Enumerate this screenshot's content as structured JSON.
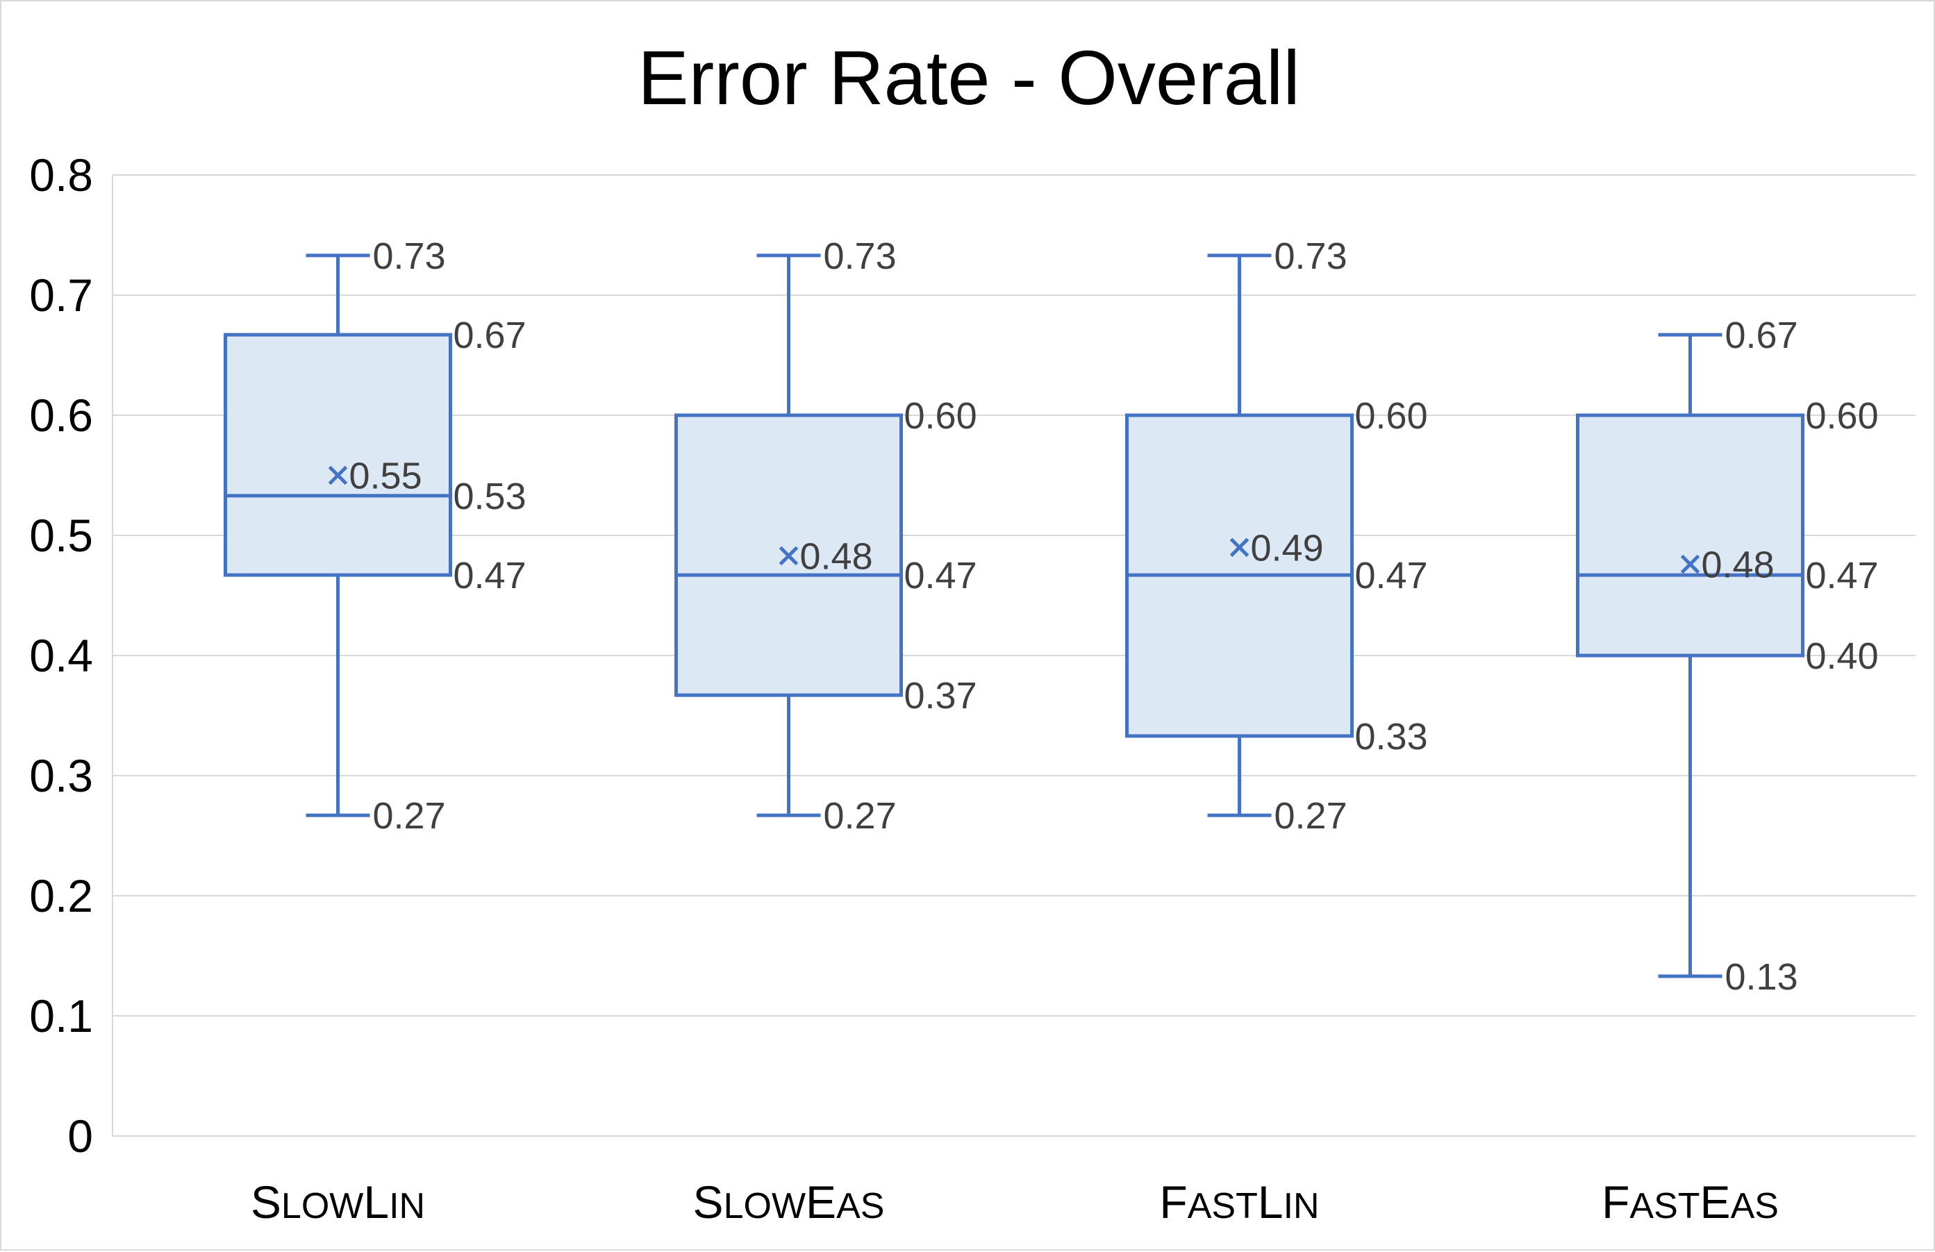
{
  "chart_data": {
    "type": "box",
    "title": "Error Rate - Overall",
    "xlabel": "",
    "ylabel": "",
    "ylim": [
      0,
      0.8
    ],
    "yticks": [
      "0",
      "0.1",
      "0.2",
      "0.3",
      "0.4",
      "0.5",
      "0.6",
      "0.7",
      "0.8"
    ],
    "grid": true,
    "categories": [
      "SlowLin",
      "SlowEas",
      "FastLin",
      "FastEas"
    ],
    "boxes": [
      {
        "category": "SlowLin",
        "max": 0.733,
        "q3": 0.667,
        "median": 0.533,
        "q1": 0.467,
        "min": 0.267,
        "mean": 0.55,
        "labels": {
          "max": "0.73",
          "q3": "0.67",
          "median": "0.53",
          "q1": "0.47",
          "min": "0.27",
          "mean": "0.55"
        }
      },
      {
        "category": "SlowEas",
        "max": 0.733,
        "q3": 0.6,
        "median": 0.467,
        "q1": 0.367,
        "min": 0.267,
        "mean": 0.483,
        "labels": {
          "max": "0.73",
          "q3": "0.60",
          "median": "0.47",
          "q1": "0.37",
          "min": "0.27",
          "mean": "0.48"
        }
      },
      {
        "category": "FastLin",
        "max": 0.733,
        "q3": 0.6,
        "median": 0.467,
        "q1": 0.333,
        "min": 0.267,
        "mean": 0.49,
        "labels": {
          "max": "0.73",
          "q3": "0.60",
          "median": "0.47",
          "q1": "0.33",
          "min": "0.27",
          "mean": "0.49"
        }
      },
      {
        "category": "FastEas",
        "max": 0.667,
        "q3": 0.6,
        "median": 0.467,
        "q1": 0.4,
        "min": 0.133,
        "mean": 0.476,
        "labels": {
          "max": "0.67",
          "q3": "0.60",
          "median": "0.47",
          "q1": "0.40",
          "min": "0.13",
          "mean": "0.48"
        }
      }
    ],
    "colors": {
      "box_fill": "#dde8f5",
      "box_stroke": "#4472c4",
      "grid": "#d9d9d9",
      "label": "#404040"
    }
  }
}
